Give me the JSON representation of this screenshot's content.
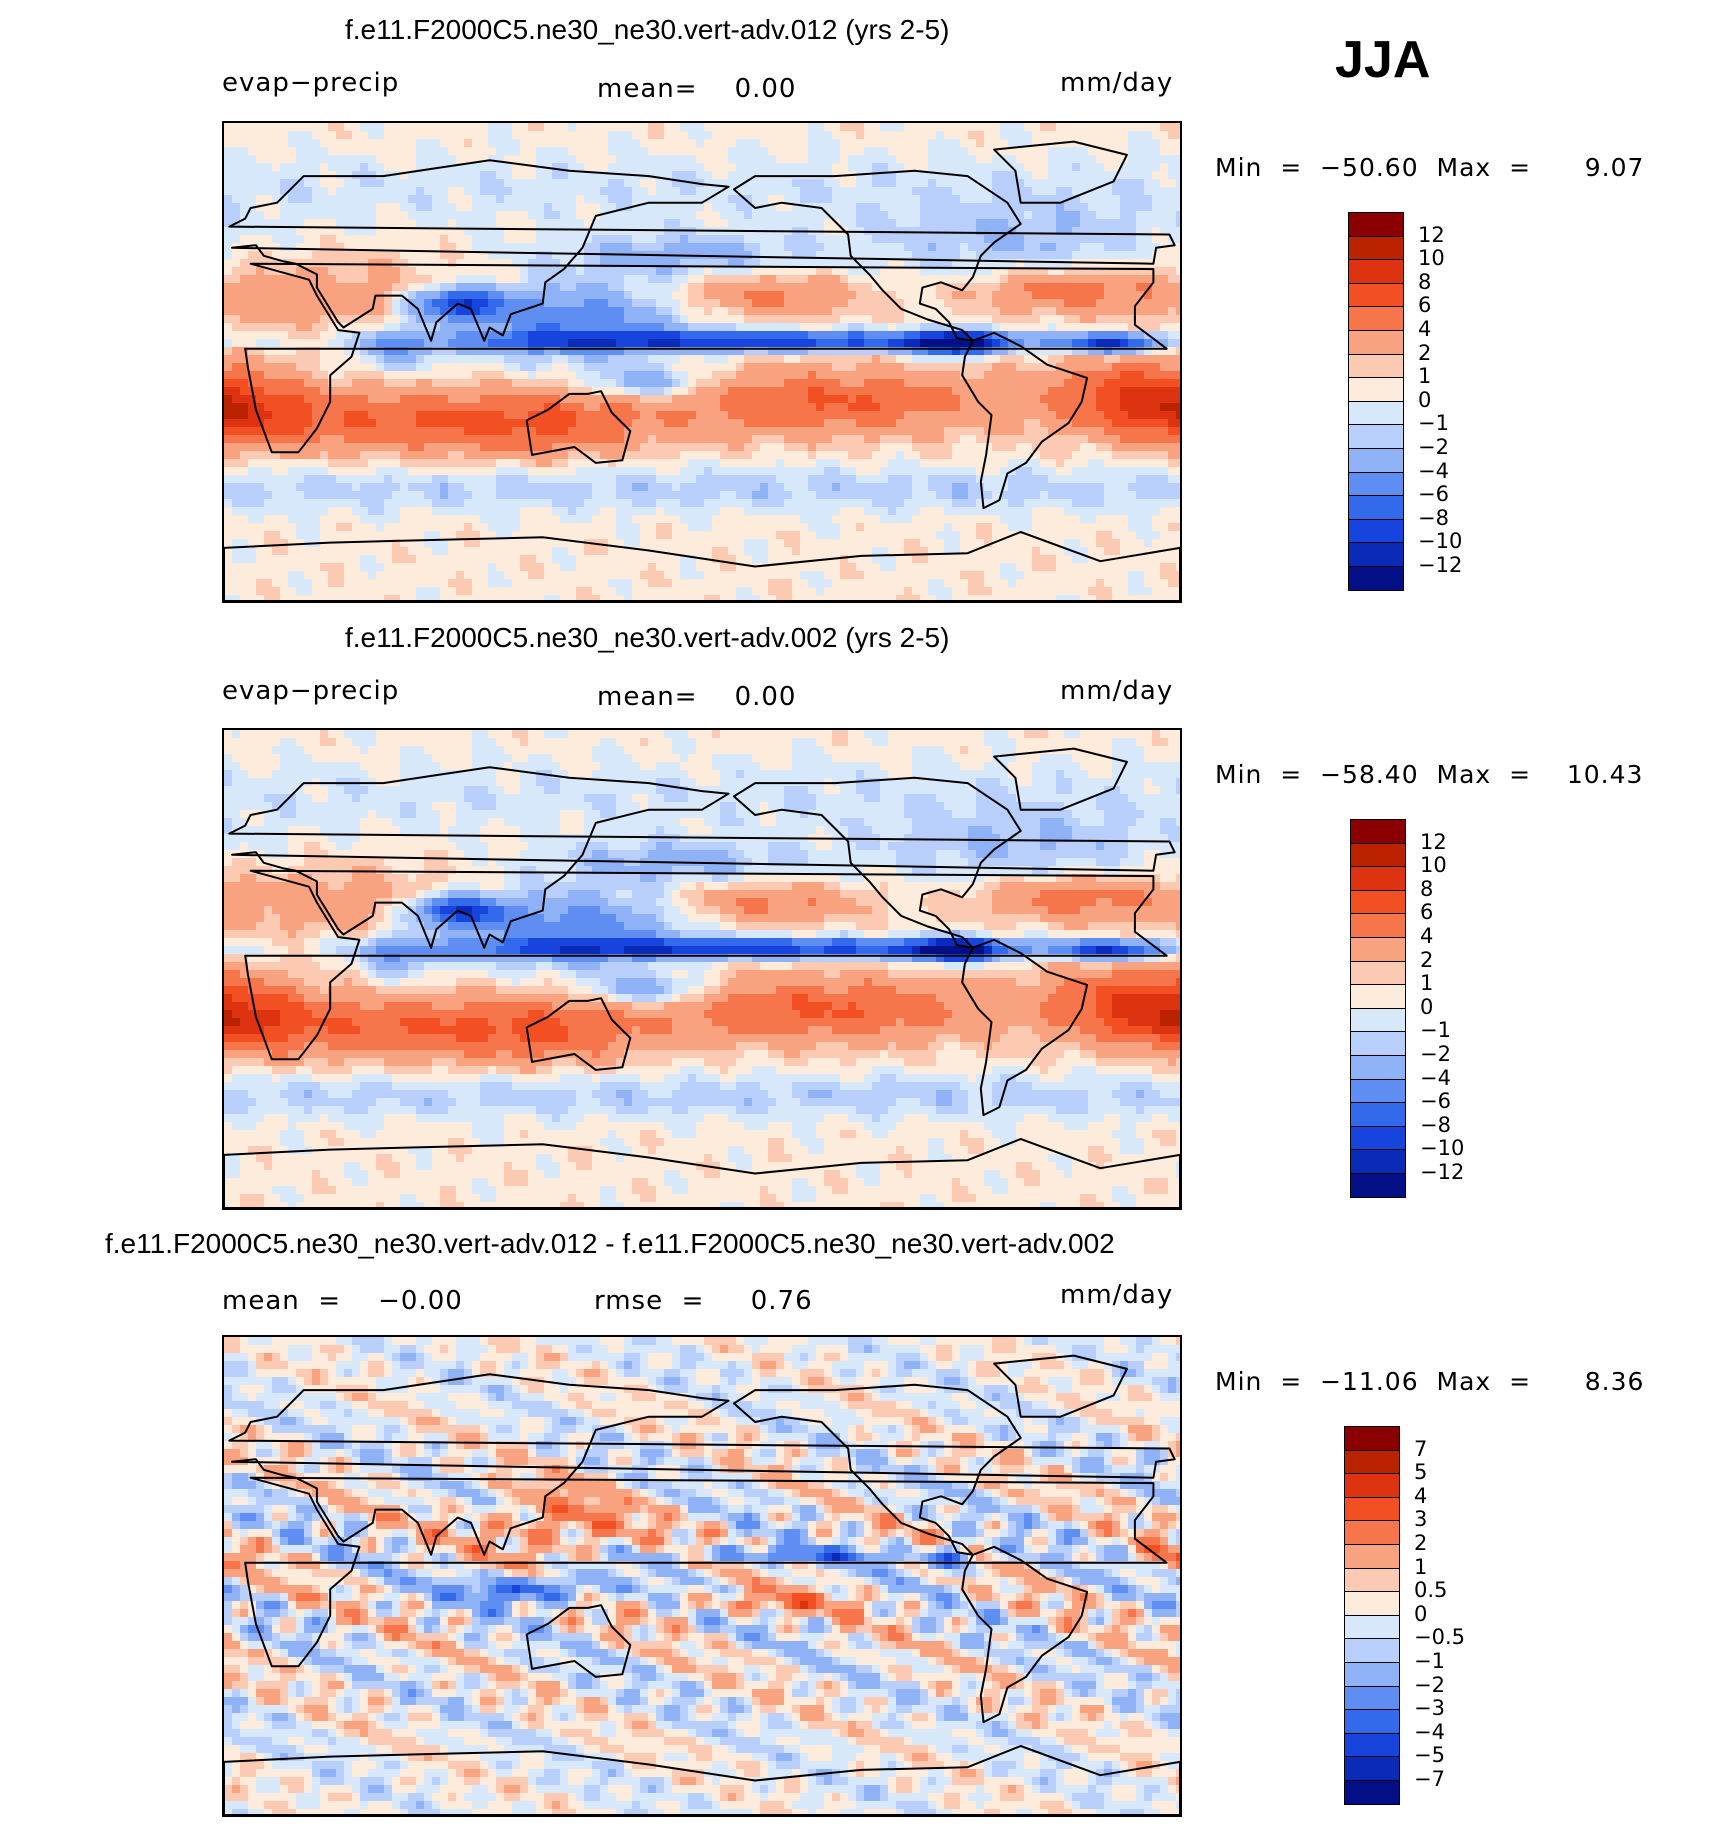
{
  "season": "JJA",
  "panels": [
    {
      "title": "f.e11.F2000C5.ne30_ne30.vert-adv.012 (yrs 2-5)",
      "left_label": "evap−precip",
      "center_label": "mean=    0.00",
      "right_label": "mm/day",
      "stats": "Min  =  −50.60  Max  =      9.07",
      "colorbar": {
        "levels": [
          "12",
          "10",
          "8",
          "6",
          "4",
          "2",
          "1",
          "0",
          "−1",
          "−2",
          "−4",
          "−6",
          "−8",
          "−10",
          "−12"
        ],
        "colors": [
          "#8b0000",
          "#bb2200",
          "#dd3311",
          "#f25022",
          "#f7754a",
          "#f9a27f",
          "#fccab2",
          "#fdecdc",
          "#d8e8fb",
          "#b7cffa",
          "#8fb2f6",
          "#5f8ef3",
          "#336aec",
          "#1644dd",
          "#0a2ab8",
          "#020f86"
        ]
      },
      "field": "mean"
    },
    {
      "title": "f.e11.F2000C5.ne30_ne30.vert-adv.002 (yrs 2-5)",
      "left_label": "evap−precip",
      "center_label": "mean=    0.00",
      "right_label": "mm/day",
      "stats": "Min  =  −58.40  Max  =    10.43",
      "colorbar": {
        "levels": [
          "12",
          "10",
          "8",
          "6",
          "4",
          "2",
          "1",
          "0",
          "−1",
          "−2",
          "−4",
          "−6",
          "−8",
          "−10",
          "−12"
        ],
        "colors": [
          "#8b0000",
          "#bb2200",
          "#dd3311",
          "#f25022",
          "#f7754a",
          "#f9a27f",
          "#fccab2",
          "#fdecdc",
          "#d8e8fb",
          "#b7cffa",
          "#8fb2f6",
          "#5f8ef3",
          "#336aec",
          "#1644dd",
          "#0a2ab8",
          "#020f86"
        ]
      },
      "field": "mean"
    },
    {
      "title": "f.e11.F2000C5.ne30_ne30.vert-adv.012 - f.e11.F2000C5.ne30_ne30.vert-adv.002",
      "left_label": "mean  =    −0.00",
      "center_label": "rmse  =     0.76",
      "right_label": "mm/day",
      "stats": "Min  =  −11.06  Max  =      8.36",
      "colorbar": {
        "levels": [
          "7",
          "5",
          "4",
          "3",
          "2",
          "1",
          "0.5",
          "0",
          "−0.5",
          "−1",
          "−2",
          "−3",
          "−4",
          "−5",
          "−7"
        ],
        "colors": [
          "#8b0000",
          "#bb2200",
          "#dd3311",
          "#f25022",
          "#f7754a",
          "#f9a27f",
          "#fccab2",
          "#fdecdc",
          "#d8e8fb",
          "#b7cffa",
          "#8fb2f6",
          "#5f8ef3",
          "#336aec",
          "#1644dd",
          "#0a2ab8",
          "#020f86"
        ]
      },
      "field": "diff"
    }
  ]
}
